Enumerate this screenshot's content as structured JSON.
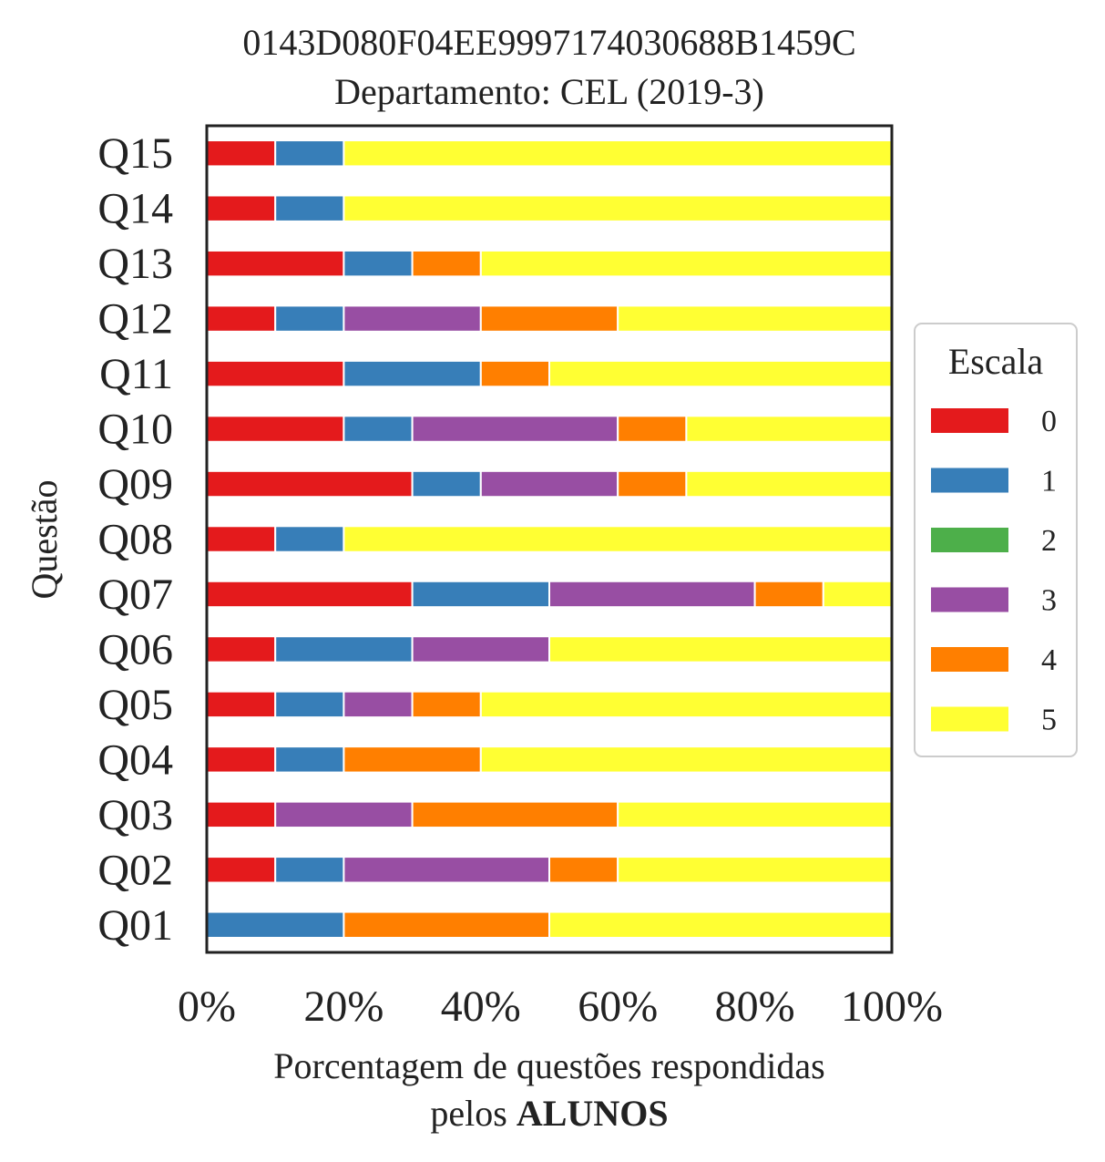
{
  "chart_data": {
    "type": "bar",
    "orientation": "horizontal",
    "stacked": true,
    "title_line1": "0143D080F04EE9997174030688B1459C",
    "title_line2": "Departamento: CEL (2019-3)",
    "xlabel_line1": "Porcentagem de questões respondidas",
    "xlabel_line2_prefix": "pelos ",
    "xlabel_line2_bold": "ALUNOS",
    "ylabel": "Questão",
    "xlim": [
      0,
      100
    ],
    "xticks": [
      "0%",
      "20%",
      "40%",
      "60%",
      "80%",
      "100%"
    ],
    "grid": false,
    "legend_title": "Escala",
    "legend_position": "center-right, outside plot",
    "categories": [
      "Q01",
      "Q02",
      "Q03",
      "Q04",
      "Q05",
      "Q06",
      "Q07",
      "Q08",
      "Q09",
      "Q10",
      "Q11",
      "Q12",
      "Q13",
      "Q14",
      "Q15"
    ],
    "series": [
      {
        "name": "0",
        "color": "#e41a1c",
        "values": [
          0,
          10,
          10,
          10,
          10,
          10,
          30,
          10,
          30,
          20,
          20,
          10,
          20,
          10,
          10
        ]
      },
      {
        "name": "1",
        "color": "#377eb8",
        "values": [
          20,
          10,
          0,
          10,
          10,
          20,
          20,
          10,
          10,
          10,
          20,
          10,
          10,
          10,
          10
        ]
      },
      {
        "name": "2",
        "color": "#4daf4a",
        "values": [
          0,
          0,
          0,
          0,
          0,
          0,
          0,
          0,
          0,
          0,
          0,
          0,
          0,
          0,
          0
        ]
      },
      {
        "name": "3",
        "color": "#984ea3",
        "values": [
          0,
          30,
          20,
          0,
          10,
          20,
          30,
          0,
          20,
          30,
          0,
          20,
          0,
          0,
          0
        ]
      },
      {
        "name": "4",
        "color": "#ff7f00",
        "values": [
          30,
          10,
          30,
          20,
          10,
          0,
          10,
          0,
          10,
          10,
          10,
          20,
          10,
          0,
          0
        ]
      },
      {
        "name": "5",
        "color": "#ffff33",
        "values": [
          50,
          40,
          40,
          60,
          60,
          50,
          10,
          80,
          30,
          30,
          50,
          40,
          60,
          80,
          80
        ]
      }
    ]
  }
}
